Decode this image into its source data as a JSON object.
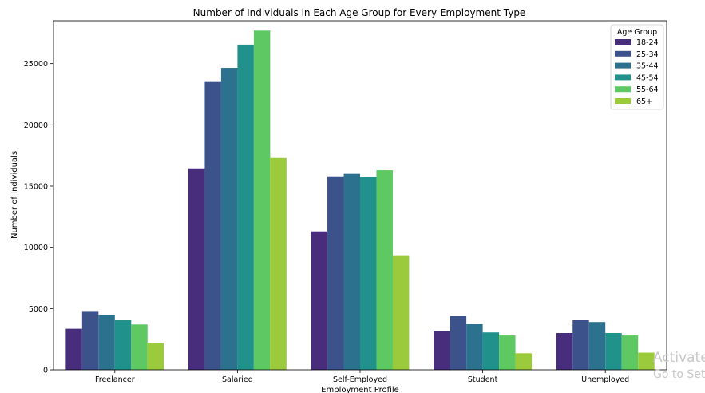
{
  "chart_data": {
    "type": "bar",
    "title": "Number of Individuals in Each Age Group for Every Employment Type",
    "xlabel": "Employment Profile",
    "ylabel": "Number of Individuals",
    "ylim": [
      0,
      28500
    ],
    "yticks": [
      0,
      5000,
      10000,
      15000,
      20000,
      25000
    ],
    "grid": false,
    "categories": [
      "Freelancer",
      "Salaried",
      "Self-Employed",
      "Student",
      "Unemployed"
    ],
    "legend": {
      "title": "Age Group",
      "placement": "top-right"
    },
    "series": [
      {
        "name": "18-24",
        "color": "#472d7b",
        "values": [
          3350,
          16450,
          11300,
          3150,
          3000
        ]
      },
      {
        "name": "25-34",
        "color": "#3b528b",
        "values": [
          4800,
          23500,
          15800,
          4400,
          4050
        ]
      },
      {
        "name": "35-44",
        "color": "#2c728e",
        "values": [
          4500,
          24650,
          16000,
          3750,
          3900
        ]
      },
      {
        "name": "45-54",
        "color": "#21918c",
        "values": [
          4050,
          26550,
          15750,
          3050,
          3000
        ]
      },
      {
        "name": "55-64",
        "color": "#5ec962",
        "values": [
          3700,
          27700,
          16300,
          2800,
          2800
        ]
      },
      {
        "name": "65+",
        "color": "#9bcb3c",
        "values": [
          2200,
          17300,
          9350,
          1350,
          1400
        ]
      }
    ]
  },
  "watermark": {
    "line1": "Activate",
    "line2": "Go to Sett"
  }
}
